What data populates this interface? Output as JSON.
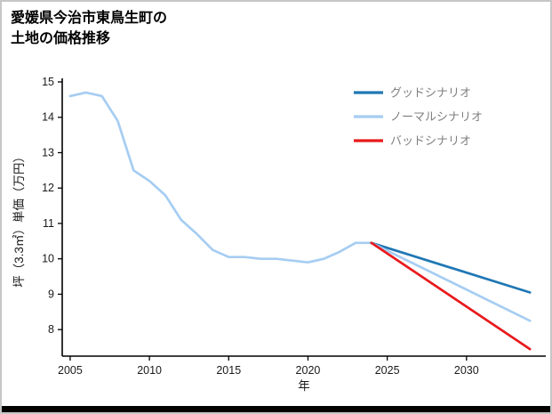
{
  "page": {
    "background": "#ffffff",
    "border_color": "#c6c6c6",
    "bottom_bar_color": "#000000"
  },
  "title": {
    "line1": "愛媛県今治市東鳥生町の",
    "line2": "土地の価格推移"
  },
  "chart_data": {
    "type": "line",
    "title": "愛媛県今治市東鳥生町の土地の価格推移",
    "xlabel": "年",
    "ylabel": "坪（3.3㎡）単価（万円）",
    "xlim": [
      2004.5,
      2035
    ],
    "ylim": [
      7.25,
      15
    ],
    "xticks": [
      2005,
      2010,
      2015,
      2020,
      2025,
      2030
    ],
    "yticks": [
      8,
      9,
      10,
      11,
      12,
      13,
      14,
      15
    ],
    "grid": false,
    "legend_position": "upper-right",
    "axis_color": "#000000",
    "tick_label_color": "#1a1a1a",
    "legend_text_color": "#7f7f7f",
    "series": [
      {
        "id": "history",
        "name": "",
        "legend": false,
        "color": "#a6cdf2",
        "x": [
          2005,
          2006,
          2007,
          2008,
          2009,
          2010,
          2011,
          2012,
          2013,
          2014,
          2015,
          2016,
          2017,
          2018,
          2019,
          2020,
          2021,
          2022,
          2023,
          2024
        ],
        "y": [
          14.6,
          14.7,
          14.6,
          13.9,
          12.5,
          12.2,
          11.8,
          11.1,
          10.7,
          10.25,
          10.05,
          10.05,
          10.0,
          10.0,
          9.95,
          9.9,
          10.0,
          10.2,
          10.45,
          10.45
        ]
      },
      {
        "id": "good",
        "name": "グッドシナリオ",
        "legend": true,
        "color": "#1f77b4",
        "x": [
          2024,
          2034
        ],
        "y": [
          10.45,
          9.05
        ]
      },
      {
        "id": "normal",
        "name": "ノーマルシナリオ",
        "legend": true,
        "color": "#a6cdf2",
        "x": [
          2024,
          2034
        ],
        "y": [
          10.45,
          8.25
        ]
      },
      {
        "id": "bad",
        "name": "バッドシナリオ",
        "legend": true,
        "color": "#e8191c",
        "x": [
          2024,
          2034
        ],
        "y": [
          10.45,
          7.45
        ]
      }
    ]
  }
}
